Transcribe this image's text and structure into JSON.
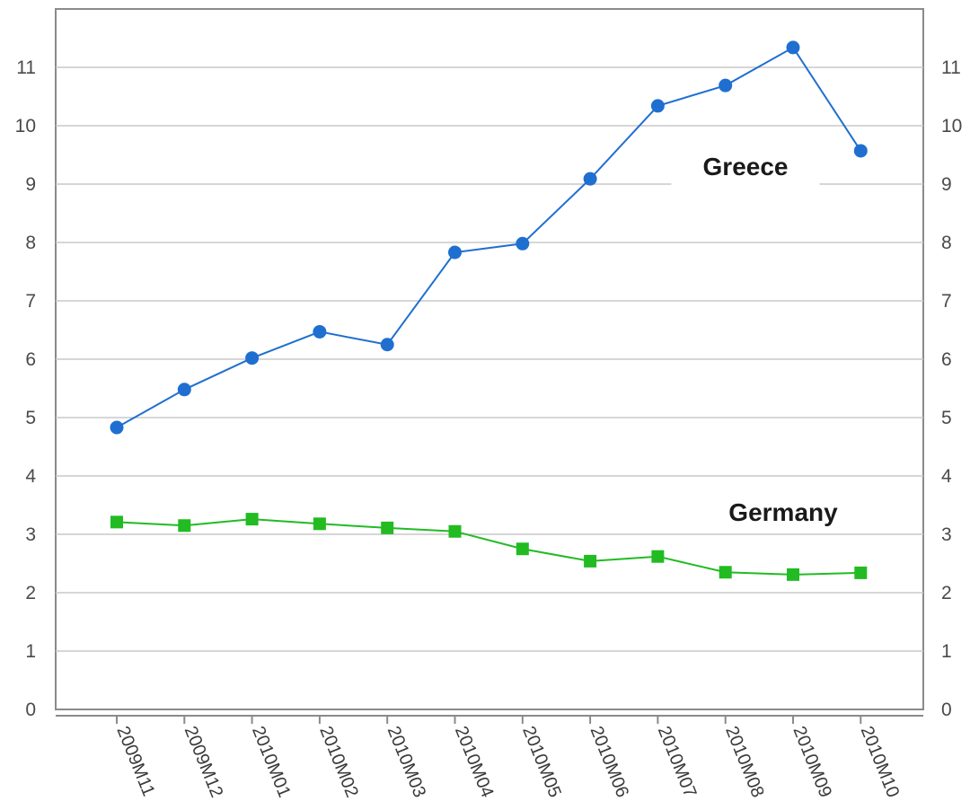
{
  "chart_data": {
    "type": "line",
    "categories": [
      "2009M11",
      "2009M12",
      "2010M01",
      "2010M02",
      "2010M03",
      "2010M04",
      "2010M05",
      "2010M06",
      "2010M07",
      "2010M08",
      "2010M09",
      "2010M10"
    ],
    "ylim": [
      0,
      11.5
    ],
    "yticks": [
      "0",
      "1",
      "2",
      "3",
      "4",
      "5",
      "6",
      "7",
      "8",
      "9",
      "10",
      "11"
    ],
    "grid": true,
    "y_axis_both_sides": true,
    "series": [
      {
        "name": "Greece",
        "color": "#1f6fd0",
        "marker": "circle",
        "values": [
          4.83,
          5.48,
          6.02,
          6.47,
          6.25,
          7.83,
          7.98,
          9.09,
          10.34,
          10.69,
          11.34,
          9.57
        ]
      },
      {
        "name": "Germany",
        "color": "#22bb22",
        "marker": "square",
        "values": [
          3.21,
          3.15,
          3.26,
          3.18,
          3.11,
          3.05,
          2.75,
          2.54,
          2.62,
          2.35,
          2.31,
          2.34
        ]
      }
    ]
  }
}
